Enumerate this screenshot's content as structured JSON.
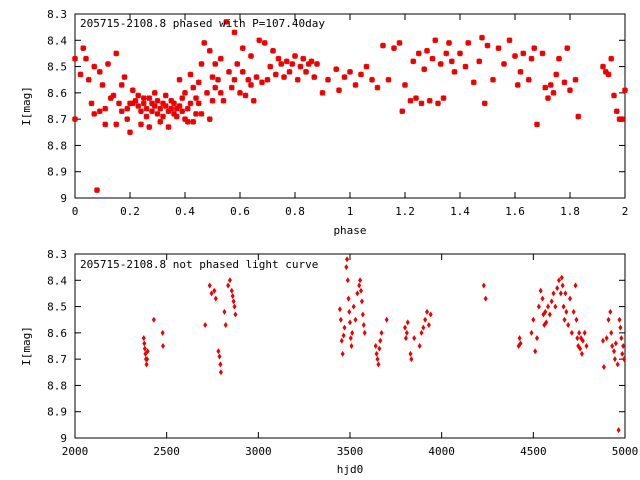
{
  "colors": {
    "point": "#ee0000",
    "axis": "#000000",
    "background": "#ffffff"
  },
  "chart_data": [
    {
      "type": "scatter",
      "title": "205715-2108.8 phased with P=107.40day",
      "xlabel": "phase",
      "ylabel": "I[mag]",
      "xlim": [
        0,
        2
      ],
      "ylim": [
        8.3,
        9.0
      ],
      "y_inverted": true,
      "grid": false,
      "xticks": [
        "0",
        "0.2",
        "0.4",
        "0.6",
        "0.8",
        "1",
        "1.2",
        "1.4",
        "1.6",
        "1.8",
        "2"
      ],
      "xtick_values": [
        0,
        0.2,
        0.4,
        0.6,
        0.8,
        1,
        1.2,
        1.4,
        1.6,
        1.8,
        2
      ],
      "yticks": [
        "8.3",
        "8.4",
        "8.5",
        "8.6",
        "8.7",
        "8.8",
        "8.9",
        "9"
      ],
      "ytick_values": [
        8.3,
        8.4,
        8.5,
        8.6,
        8.7,
        8.8,
        8.9,
        9.0
      ],
      "marker": "star",
      "points": [
        [
          0.0,
          8.47
        ],
        [
          0.0,
          8.7
        ],
        [
          0.02,
          8.53
        ],
        [
          0.03,
          8.43
        ],
        [
          0.04,
          8.47
        ],
        [
          0.05,
          8.55
        ],
        [
          0.06,
          8.64
        ],
        [
          0.07,
          8.5
        ],
        [
          0.07,
          8.68
        ],
        [
          0.08,
          8.97
        ],
        [
          0.09,
          8.67
        ],
        [
          0.09,
          8.52
        ],
        [
          0.1,
          8.57
        ],
        [
          0.11,
          8.66
        ],
        [
          0.11,
          8.72
        ],
        [
          0.12,
          8.49
        ],
        [
          0.13,
          8.62
        ],
        [
          0.14,
          8.61
        ],
        [
          0.15,
          8.72
        ],
        [
          0.15,
          8.45
        ],
        [
          0.16,
          8.64
        ],
        [
          0.17,
          8.67
        ],
        [
          0.17,
          8.57
        ],
        [
          0.18,
          8.54
        ],
        [
          0.19,
          8.66
        ],
        [
          0.19,
          8.7
        ],
        [
          0.2,
          8.64
        ],
        [
          0.2,
          8.75
        ],
        [
          0.21,
          8.64
        ],
        [
          0.21,
          8.59
        ],
        [
          0.22,
          8.63
        ],
        [
          0.23,
          8.65
        ],
        [
          0.23,
          8.61
        ],
        [
          0.24,
          8.67
        ],
        [
          0.24,
          8.72
        ],
        [
          0.25,
          8.64
        ],
        [
          0.25,
          8.62
        ],
        [
          0.26,
          8.69
        ],
        [
          0.26,
          8.66
        ],
        [
          0.27,
          8.62
        ],
        [
          0.27,
          8.73
        ],
        [
          0.28,
          8.64
        ],
        [
          0.28,
          8.67
        ],
        [
          0.29,
          8.65
        ],
        [
          0.29,
          8.6
        ],
        [
          0.3,
          8.68
        ],
        [
          0.3,
          8.63
        ],
        [
          0.31,
          8.66
        ],
        [
          0.31,
          8.71
        ],
        [
          0.32,
          8.64
        ],
        [
          0.32,
          8.69
        ],
        [
          0.33,
          8.65
        ],
        [
          0.33,
          8.61
        ],
        [
          0.34,
          8.67
        ],
        [
          0.34,
          8.73
        ],
        [
          0.35,
          8.66
        ],
        [
          0.35,
          8.63
        ],
        [
          0.36,
          8.68
        ],
        [
          0.36,
          8.64
        ],
        [
          0.37,
          8.66
        ],
        [
          0.37,
          8.69
        ],
        [
          0.38,
          8.65
        ],
        [
          0.38,
          8.55
        ],
        [
          0.39,
          8.67
        ],
        [
          0.39,
          8.62
        ],
        [
          0.4,
          8.7
        ],
        [
          0.4,
          8.6
        ],
        [
          0.41,
          8.66
        ],
        [
          0.41,
          8.71
        ],
        [
          0.42,
          8.53
        ],
        [
          0.42,
          8.64
        ],
        [
          0.43,
          8.58
        ],
        [
          0.43,
          8.71
        ],
        [
          0.44,
          8.62
        ],
        [
          0.44,
          8.68
        ],
        [
          0.45,
          8.56
        ],
        [
          0.45,
          8.64
        ],
        [
          0.46,
          8.49
        ],
        [
          0.46,
          8.68
        ],
        [
          0.47,
          8.41
        ],
        [
          0.48,
          8.6
        ],
        [
          0.49,
          8.44
        ],
        [
          0.49,
          8.7
        ],
        [
          0.5,
          8.54
        ],
        [
          0.5,
          8.63
        ],
        [
          0.51,
          8.58
        ],
        [
          0.51,
          8.49
        ],
        [
          0.52,
          8.55
        ],
        [
          0.53,
          8.47
        ],
        [
          0.53,
          8.6
        ],
        [
          0.54,
          8.63
        ],
        [
          0.55,
          8.33
        ],
        [
          0.56,
          8.52
        ],
        [
          0.57,
          8.58
        ],
        [
          0.58,
          8.37
        ],
        [
          0.58,
          8.55
        ],
        [
          0.59,
          8.49
        ],
        [
          0.6,
          8.6
        ],
        [
          0.61,
          8.52
        ],
        [
          0.61,
          8.43
        ],
        [
          0.62,
          8.61
        ],
        [
          0.63,
          8.55
        ],
        [
          0.64,
          8.57
        ],
        [
          0.64,
          8.46
        ],
        [
          0.65,
          8.63
        ],
        [
          0.66,
          8.54
        ],
        [
          0.67,
          8.4
        ],
        [
          0.68,
          8.56
        ],
        [
          0.69,
          8.41
        ],
        [
          0.7,
          8.55
        ],
        [
          0.71,
          8.5
        ],
        [
          0.72,
          8.44
        ],
        [
          0.73,
          8.53
        ],
        [
          0.74,
          8.47
        ],
        [
          0.75,
          8.49
        ],
        [
          0.76,
          8.54
        ],
        [
          0.77,
          8.48
        ],
        [
          0.78,
          8.52
        ],
        [
          0.79,
          8.49
        ],
        [
          0.8,
          8.46
        ],
        [
          0.81,
          8.55
        ],
        [
          0.82,
          8.5
        ],
        [
          0.83,
          8.47
        ],
        [
          0.84,
          8.52
        ],
        [
          0.85,
          8.49
        ],
        [
          0.86,
          8.48
        ],
        [
          0.87,
          8.54
        ],
        [
          0.88,
          8.49
        ],
        [
          0.9,
          8.6
        ],
        [
          0.92,
          8.55
        ],
        [
          0.95,
          8.51
        ],
        [
          0.96,
          8.59
        ],
        [
          0.98,
          8.54
        ],
        [
          1.0,
          8.52
        ],
        [
          1.02,
          8.57
        ],
        [
          1.04,
          8.53
        ],
        [
          1.06,
          8.5
        ],
        [
          1.08,
          8.55
        ],
        [
          1.1,
          8.58
        ],
        [
          1.12,
          8.42
        ],
        [
          1.14,
          8.55
        ],
        [
          1.16,
          8.43
        ],
        [
          1.18,
          8.41
        ],
        [
          1.19,
          8.67
        ],
        [
          1.2,
          8.57
        ],
        [
          1.22,
          8.63
        ],
        [
          1.23,
          8.48
        ],
        [
          1.24,
          8.62
        ],
        [
          1.25,
          8.45
        ],
        [
          1.26,
          8.64
        ],
        [
          1.27,
          8.51
        ],
        [
          1.28,
          8.44
        ],
        [
          1.29,
          8.63
        ],
        [
          1.3,
          8.47
        ],
        [
          1.31,
          8.4
        ],
        [
          1.32,
          8.64
        ],
        [
          1.33,
          8.49
        ],
        [
          1.34,
          8.62
        ],
        [
          1.35,
          8.45
        ],
        [
          1.36,
          8.41
        ],
        [
          1.37,
          8.48
        ],
        [
          1.38,
          8.52
        ],
        [
          1.4,
          8.45
        ],
        [
          1.42,
          8.5
        ],
        [
          1.43,
          8.41
        ],
        [
          1.45,
          8.56
        ],
        [
          1.47,
          8.48
        ],
        [
          1.48,
          8.39
        ],
        [
          1.49,
          8.64
        ],
        [
          1.5,
          8.42
        ],
        [
          1.52,
          8.55
        ],
        [
          1.54,
          8.43
        ],
        [
          1.56,
          8.49
        ],
        [
          1.58,
          8.4
        ],
        [
          1.6,
          8.46
        ],
        [
          1.61,
          8.57
        ],
        [
          1.62,
          8.52
        ],
        [
          1.63,
          8.45
        ],
        [
          1.65,
          8.55
        ],
        [
          1.66,
          8.47
        ],
        [
          1.67,
          8.43
        ],
        [
          1.68,
          8.72
        ],
        [
          1.7,
          8.45
        ],
        [
          1.71,
          8.58
        ],
        [
          1.72,
          8.62
        ],
        [
          1.73,
          8.57
        ],
        [
          1.74,
          8.6
        ],
        [
          1.75,
          8.53
        ],
        [
          1.76,
          8.47
        ],
        [
          1.78,
          8.56
        ],
        [
          1.79,
          8.43
        ],
        [
          1.8,
          8.59
        ],
        [
          1.82,
          8.55
        ],
        [
          1.83,
          8.69
        ],
        [
          1.92,
          8.5
        ],
        [
          1.93,
          8.52
        ],
        [
          1.94,
          8.53
        ],
        [
          1.95,
          8.47
        ],
        [
          1.96,
          8.61
        ],
        [
          1.97,
          8.67
        ],
        [
          1.98,
          8.7
        ],
        [
          1.99,
          8.7
        ],
        [
          2.0,
          8.59
        ]
      ]
    },
    {
      "type": "scatter",
      "title": "205715-2108.8 not phased light curve",
      "xlabel": "hjd0",
      "ylabel": "I[mag]",
      "xlim": [
        2000,
        5000
      ],
      "ylim": [
        8.3,
        9.0
      ],
      "y_inverted": true,
      "grid": false,
      "xticks": [
        "2000",
        "2500",
        "3000",
        "3500",
        "4000",
        "4500",
        "5000"
      ],
      "xtick_values": [
        2000,
        2500,
        3000,
        3500,
        4000,
        4500,
        5000
      ],
      "yticks": [
        "8.3",
        "8.4",
        "8.5",
        "8.6",
        "8.7",
        "8.8",
        "8.9",
        "9"
      ],
      "ytick_values": [
        8.3,
        8.4,
        8.5,
        8.6,
        8.7,
        8.8,
        8.9,
        9.0
      ],
      "marker": "diamond",
      "points": [
        [
          2375,
          8.62
        ],
        [
          2378,
          8.64
        ],
        [
          2381,
          8.66
        ],
        [
          2384,
          8.68
        ],
        [
          2387,
          8.7
        ],
        [
          2390,
          8.72
        ],
        [
          2393,
          8.7
        ],
        [
          2396,
          8.67
        ],
        [
          2430,
          8.55
        ],
        [
          2478,
          8.6
        ],
        [
          2480,
          8.65
        ],
        [
          2710,
          8.57
        ],
        [
          2735,
          8.42
        ],
        [
          2745,
          8.45
        ],
        [
          2760,
          8.44
        ],
        [
          2768,
          8.47
        ],
        [
          2782,
          8.67
        ],
        [
          2788,
          8.69
        ],
        [
          2793,
          8.72
        ],
        [
          2796,
          8.75
        ],
        [
          2815,
          8.52
        ],
        [
          2822,
          8.57
        ],
        [
          2835,
          8.42
        ],
        [
          2845,
          8.4
        ],
        [
          2855,
          8.44
        ],
        [
          2860,
          8.46
        ],
        [
          2865,
          8.48
        ],
        [
          2870,
          8.5
        ],
        [
          2875,
          8.53
        ],
        [
          3445,
          8.51
        ],
        [
          3450,
          8.55
        ],
        [
          3455,
          8.63
        ],
        [
          3460,
          8.68
        ],
        [
          3465,
          8.61
        ],
        [
          3470,
          8.58
        ],
        [
          3480,
          8.35
        ],
        [
          3484,
          8.32
        ],
        [
          3488,
          8.4
        ],
        [
          3492,
          8.47
        ],
        [
          3496,
          8.52
        ],
        [
          3500,
          8.56
        ],
        [
          3504,
          8.62
        ],
        [
          3508,
          8.65
        ],
        [
          3512,
          8.6
        ],
        [
          3520,
          8.5
        ],
        [
          3530,
          8.55
        ],
        [
          3540,
          8.45
        ],
        [
          3550,
          8.42
        ],
        [
          3555,
          8.4
        ],
        [
          3560,
          8.44
        ],
        [
          3565,
          8.48
        ],
        [
          3570,
          8.53
        ],
        [
          3575,
          8.57
        ],
        [
          3580,
          8.6
        ],
        [
          3640,
          8.65
        ],
        [
          3645,
          8.68
        ],
        [
          3650,
          8.7
        ],
        [
          3655,
          8.72
        ],
        [
          3660,
          8.66
        ],
        [
          3665,
          8.63
        ],
        [
          3672,
          8.6
        ],
        [
          3700,
          8.55
        ],
        [
          3800,
          8.58
        ],
        [
          3805,
          8.62
        ],
        [
          3810,
          8.6
        ],
        [
          3815,
          8.56
        ],
        [
          3830,
          8.68
        ],
        [
          3835,
          8.7
        ],
        [
          3850,
          8.62
        ],
        [
          3880,
          8.65
        ],
        [
          3890,
          8.6
        ],
        [
          3900,
          8.58
        ],
        [
          3910,
          8.55
        ],
        [
          3920,
          8.52
        ],
        [
          3930,
          8.57
        ],
        [
          3940,
          8.53
        ],
        [
          4230,
          8.42
        ],
        [
          4240,
          8.47
        ],
        [
          4420,
          8.65
        ],
        [
          4425,
          8.62
        ],
        [
          4430,
          8.64
        ],
        [
          4490,
          8.6
        ],
        [
          4500,
          8.55
        ],
        [
          4510,
          8.67
        ],
        [
          4520,
          8.62
        ],
        [
          4530,
          8.5
        ],
        [
          4540,
          8.44
        ],
        [
          4550,
          8.47
        ],
        [
          4555,
          8.53
        ],
        [
          4560,
          8.57
        ],
        [
          4565,
          8.52
        ],
        [
          4570,
          8.56
        ],
        [
          4580,
          8.5
        ],
        [
          4590,
          8.53
        ],
        [
          4600,
          8.48
        ],
        [
          4610,
          8.45
        ],
        [
          4620,
          8.5
        ],
        [
          4630,
          8.43
        ],
        [
          4640,
          8.4
        ],
        [
          4650,
          8.45
        ],
        [
          4655,
          8.39
        ],
        [
          4660,
          8.42
        ],
        [
          4665,
          8.5
        ],
        [
          4670,
          8.55
        ],
        [
          4675,
          8.45
        ],
        [
          4680,
          8.52
        ],
        [
          4690,
          8.57
        ],
        [
          4700,
          8.47
        ],
        [
          4710,
          8.6
        ],
        [
          4720,
          8.52
        ],
        [
          4730,
          8.42
        ],
        [
          4735,
          8.55
        ],
        [
          4740,
          8.62
        ],
        [
          4745,
          8.65
        ],
        [
          4750,
          8.6
        ],
        [
          4755,
          8.66
        ],
        [
          4760,
          8.62
        ],
        [
          4765,
          8.68
        ],
        [
          4770,
          8.63
        ],
        [
          4780,
          8.6
        ],
        [
          4790,
          8.65
        ],
        [
          4880,
          8.63
        ],
        [
          4885,
          8.73
        ],
        [
          4900,
          8.62
        ],
        [
          4910,
          8.55
        ],
        [
          4920,
          8.52
        ],
        [
          4925,
          8.6
        ],
        [
          4930,
          8.65
        ],
        [
          4940,
          8.67
        ],
        [
          4945,
          8.7
        ],
        [
          4950,
          8.64
        ],
        [
          4960,
          8.72
        ],
        [
          4965,
          8.97
        ],
        [
          4970,
          8.55
        ],
        [
          4975,
          8.58
        ],
        [
          4980,
          8.62
        ],
        [
          4985,
          8.68
        ],
        [
          4990,
          8.65
        ],
        [
          4995,
          8.7
        ]
      ]
    }
  ]
}
